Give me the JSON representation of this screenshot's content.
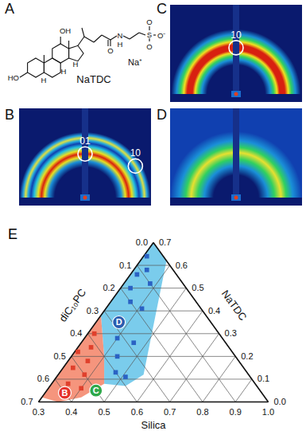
{
  "figure": {
    "panel_labels": [
      "A",
      "B",
      "C",
      "D",
      "E"
    ],
    "structure": {
      "name": "NaTDC",
      "counterion": "Na⁺",
      "atom_labels": [
        "OH",
        "HO",
        "H",
        "H",
        "H",
        "O",
        "N",
        "H",
        "S",
        "O",
        "O",
        "O⁻"
      ]
    },
    "diffraction": [
      {
        "panel": "B",
        "peaks": [
          "01",
          "10"
        ]
      },
      {
        "panel": "C",
        "peaks": [
          "10"
        ]
      },
      {
        "panel": "D",
        "peaks": []
      }
    ]
  },
  "chart_data": {
    "type": "ternary",
    "grid": true,
    "axes": [
      {
        "label": "Silica",
        "lim": [
          0.3,
          1
        ],
        "ticks": [
          0.3,
          0.4,
          0.5,
          0.6,
          0.7,
          0.8,
          0.9,
          {
            "value": 1,
            "label": "1.0"
          }
        ]
      },
      {
        "label": "diC₁₀PC",
        "lim": [
          0,
          0.7
        ],
        "ticks": [
          {
            "value": 0,
            "label": "0.0"
          },
          0.1,
          0.2,
          0.3,
          0.4,
          0.5,
          0.6,
          0.7
        ]
      },
      {
        "label": "NaTDC",
        "lim": [
          0,
          0.7
        ],
        "ticks": [
          {
            "value": 0,
            "label": "0.0"
          },
          0.1,
          0.2,
          0.3,
          0.4,
          0.5,
          0.6,
          0.7
        ]
      }
    ],
    "regions": [
      {
        "color": "#6cc6ea",
        "vertices": [
          [
            0.3,
            0.0,
            0.7
          ],
          [
            0.38,
            0.0,
            0.62
          ],
          [
            0.56,
            0.32,
            0.12
          ],
          [
            0.53,
            0.4,
            0.07
          ],
          [
            0.46,
            0.46,
            0.08
          ],
          [
            0.4,
            0.4,
            0.2
          ],
          [
            0.3,
            0.32,
            0.38
          ]
        ]
      },
      {
        "color": "#f4896f",
        "vertices": [
          [
            0.3,
            0.32,
            0.38
          ],
          [
            0.4,
            0.4,
            0.2
          ],
          [
            0.46,
            0.46,
            0.08
          ],
          [
            0.42,
            0.56,
            0.02
          ],
          [
            0.36,
            0.64,
            0.0
          ],
          [
            0.3,
            0.68,
            0.02
          ]
        ]
      }
    ],
    "series": [
      {
        "color": "#2a62c4",
        "marker": "square",
        "values": [
          [
            0.31,
            0.05,
            0.64
          ],
          [
            0.34,
            0.08,
            0.58
          ],
          [
            0.32,
            0.12,
            0.56
          ],
          [
            0.38,
            0.1,
            0.52
          ],
          [
            0.33,
            0.17,
            0.5
          ],
          [
            0.36,
            0.2,
            0.44
          ],
          [
            0.41,
            0.18,
            0.41
          ],
          [
            0.36,
            0.28,
            0.36
          ],
          [
            0.4,
            0.32,
            0.28
          ],
          [
            0.46,
            0.28,
            0.26
          ],
          [
            0.44,
            0.36,
            0.2
          ],
          [
            0.47,
            0.4,
            0.13
          ],
          [
            0.51,
            0.38,
            0.11
          ]
        ]
      },
      {
        "color": "#e0402c",
        "marker": "square",
        "values": [
          [
            0.32,
            0.38,
            0.3
          ],
          [
            0.34,
            0.42,
            0.24
          ],
          [
            0.31,
            0.47,
            0.22
          ],
          [
            0.36,
            0.46,
            0.18
          ],
          [
            0.33,
            0.52,
            0.15
          ],
          [
            0.38,
            0.5,
            0.12
          ],
          [
            0.35,
            0.57,
            0.08
          ],
          [
            0.4,
            0.54,
            0.06
          ]
        ]
      }
    ],
    "labeled_points": [
      {
        "label": "B",
        "color": "#e5322b",
        "marker": "circle",
        "value": [
          0.36,
          0.6,
          0.04
        ]
      },
      {
        "label": "C",
        "color": "#2ea84a",
        "marker": "circle",
        "value": [
          0.45,
          0.5,
          0.05
        ]
      },
      {
        "label": "D",
        "color": "#2a5db0",
        "marker": "circle",
        "value": [
          0.37,
          0.28,
          0.35
        ]
      }
    ]
  }
}
